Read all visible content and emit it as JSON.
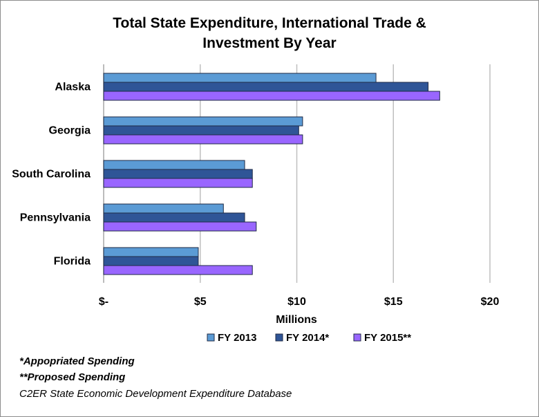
{
  "chart_data": {
    "type": "bar",
    "orientation": "horizontal",
    "title": "Total State Expenditure, International Trade & Investment By Year",
    "xlabel": "Millions",
    "ylabel": "",
    "categories": [
      "Alaska",
      "Georgia",
      "South Carolina",
      "Pennsylvania",
      "Florida"
    ],
    "series": [
      {
        "name": "FY 2013",
        "color": "#5b9bd5",
        "values": [
          14.1,
          10.3,
          7.3,
          6.2,
          4.9
        ]
      },
      {
        "name": "FY 2014*",
        "color": "#2f5597",
        "values": [
          16.8,
          10.1,
          7.7,
          7.3,
          4.9
        ]
      },
      {
        "name": "FY 2015**",
        "color": "#9966ff",
        "values": [
          17.4,
          10.3,
          7.7,
          7.9,
          7.7
        ]
      }
    ],
    "xlim": [
      0,
      20
    ],
    "xticks": [
      0,
      5,
      10,
      15,
      20
    ],
    "xtick_labels": [
      "$-",
      "$5",
      "$10",
      "$15",
      "$20"
    ],
    "grid": true,
    "legend_position": "bottom"
  },
  "notes": {
    "line1": "*Appopriated Spending",
    "line2": "**Proposed Spending",
    "source": "C2ER State Economic Development Expenditure Database"
  }
}
